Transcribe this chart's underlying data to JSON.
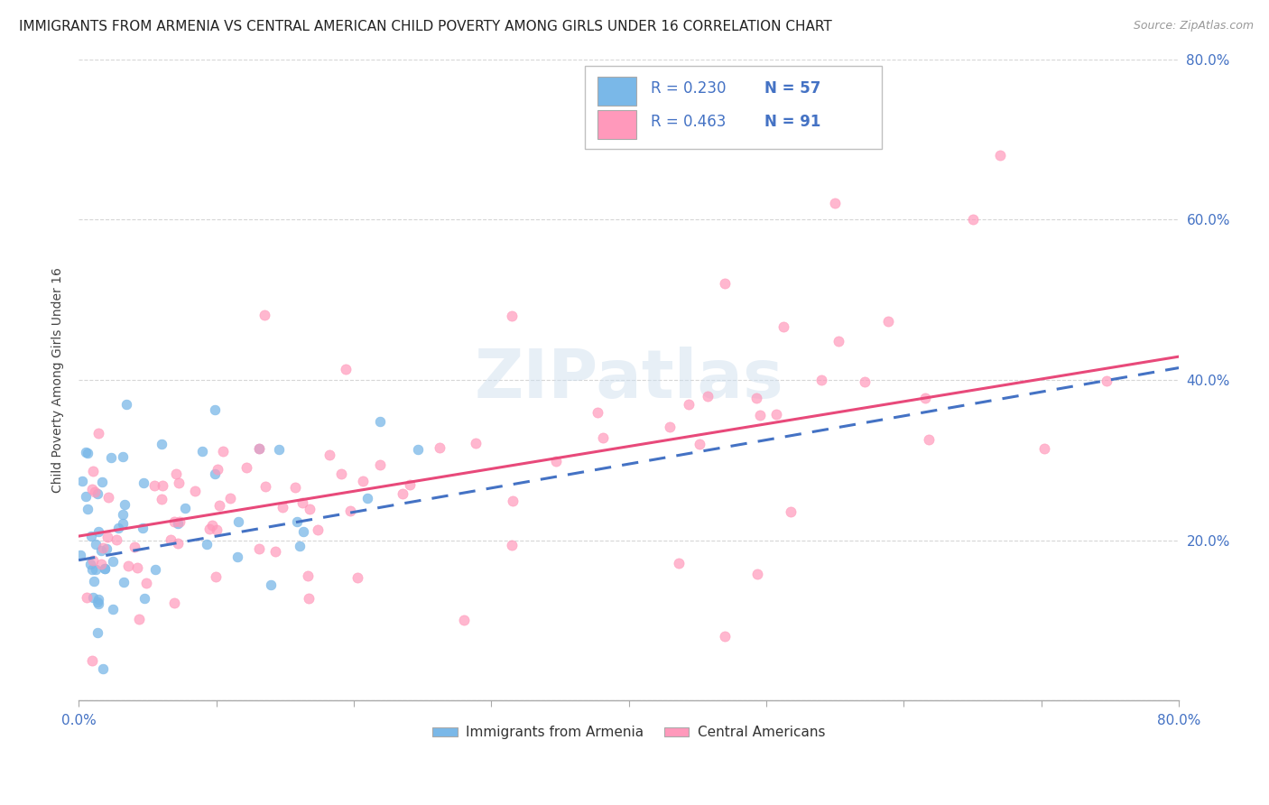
{
  "title": "IMMIGRANTS FROM ARMENIA VS CENTRAL AMERICAN CHILD POVERTY AMONG GIRLS UNDER 16 CORRELATION CHART",
  "source": "Source: ZipAtlas.com",
  "ylabel": "Child Poverty Among Girls Under 16",
  "xlim": [
    0.0,
    0.8
  ],
  "ylim": [
    0.0,
    0.8
  ],
  "color_armenia": "#7ab8e8",
  "color_central": "#ff99bb",
  "color_line_armenia": "#4472c4",
  "color_line_central": "#e8497a",
  "watermark": "ZIPatlas",
  "legend_box_color": "#aaaaaa",
  "r1_color": "#4472c4",
  "n1_color": "#4472c4",
  "r2_color": "#4472c4",
  "n2_color": "#4472c4",
  "tick_color": "#4472c4"
}
